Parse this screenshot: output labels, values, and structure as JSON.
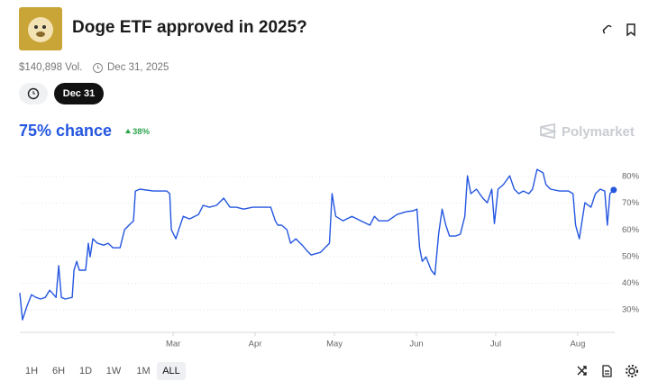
{
  "header": {
    "title": "Doge ETF approved in 2025?",
    "volume": "$140,898 Vol.",
    "end_date": "Dec 31, 2025",
    "date_pill": "Dec 31",
    "chance": "75% chance",
    "change": "38%",
    "brand": "Polymarket"
  },
  "chart_data": {
    "type": "line",
    "color": "#2456e0",
    "x": [
      0,
      1.0,
      2.7,
      4.4,
      6.1,
      7.8,
      9.6,
      11.3,
      13.7,
      14.7,
      15.7,
      17.1,
      19.8,
      20.5,
      21.5,
      22.5,
      24.9,
      25.9,
      26.6,
      27.6,
      29.4,
      31.7,
      33.4,
      35.2,
      37.9,
      39.6,
      41.3,
      43.0,
      43.7,
      45.4,
      50.5,
      55.6,
      56.7,
      57.3,
      59.0,
      60.1,
      61.8,
      64.2,
      67.6,
      69.3,
      71.7,
      74.4,
      77.1,
      79.5,
      81.9,
      84.6,
      88.1,
      94.9,
      96.6,
      97.6,
      99.0,
      101.0,
      102.4,
      104.4,
      106.8,
      108.5,
      110.2,
      113.7,
      115.4,
      117.1,
      118.1,
      119.5,
      122.2,
      125.6,
      129.0,
      132.4,
      134.1,
      135.8,
      139.2,
      142.7,
      146.1,
      148.8,
      150.2,
      151.2,
      152.2,
      153.6,
      155.6,
      157.0,
      158.4,
      159.7,
      161.1,
      162.5,
      164.8,
      166.6,
      168.3,
      169.3,
      170.6,
      172.7,
      175.1,
      176.8,
      178.5,
      179.5,
      180.9,
      182.9,
      185.3,
      187.0,
      188.7,
      190.4,
      192.5,
      193.9,
      195.6,
      197.9,
      199.0,
      200.7,
      204.1,
      207.5,
      209.2,
      210.2,
      211.6,
      213.7,
      216.0,
      217.7,
      219.5,
      221.2,
      222.2,
      223.2,
      224.6
    ],
    "values": [
      36.4,
      26.3,
      31.4,
      35.7,
      34.7,
      34.1,
      34.7,
      37.4,
      34.7,
      46.6,
      34.7,
      34.1,
      34.7,
      44.9,
      48.2,
      44.9,
      44.9,
      55.0,
      49.9,
      56.7,
      55.0,
      54.3,
      55.0,
      53.3,
      53.3,
      60.1,
      61.8,
      63.4,
      74.6,
      75.3,
      74.6,
      74.6,
      73.6,
      60.1,
      56.7,
      60.1,
      65.1,
      64.1,
      65.8,
      69.2,
      68.5,
      69.2,
      71.9,
      68.5,
      68.5,
      67.8,
      68.5,
      68.5,
      63.4,
      61.8,
      61.8,
      60.1,
      55.0,
      56.7,
      54.3,
      52.3,
      50.6,
      51.6,
      53.3,
      55.0,
      73.6,
      65.1,
      63.4,
      65.1,
      63.4,
      61.8,
      65.1,
      63.4,
      63.4,
      65.8,
      66.8,
      67.2,
      67.8,
      53.3,
      48.2,
      49.9,
      44.9,
      43.2,
      58.4,
      67.8,
      61.8,
      57.7,
      57.7,
      58.4,
      65.1,
      80.3,
      73.6,
      75.3,
      71.9,
      70.2,
      75.3,
      62.4,
      75.3,
      77.0,
      80.3,
      75.3,
      73.6,
      74.6,
      73.6,
      75.3,
      82.7,
      81.4,
      77.0,
      75.3,
      74.6,
      74.6,
      73.6,
      61.8,
      56.7,
      70.2,
      68.5,
      73.6,
      75.3,
      74.6,
      61.8,
      73.6,
      75
    ],
    "xlim": [
      0,
      225
    ],
    "xticks": [
      {
        "value": 58,
        "label": "Mar"
      },
      {
        "value": 89,
        "label": "Apr"
      },
      {
        "value": 119,
        "label": "May"
      },
      {
        "value": 150,
        "label": "Jun"
      },
      {
        "value": 180,
        "label": "Jul"
      },
      {
        "value": 211,
        "label": "Aug"
      }
    ],
    "ylim": [
      21.6,
      88.8
    ],
    "yticks": [
      {
        "value": 30,
        "label": "30%"
      },
      {
        "value": 40,
        "label": "40%"
      },
      {
        "value": 50,
        "label": "50%"
      },
      {
        "value": 60,
        "label": "60%"
      },
      {
        "value": 70,
        "label": "70%"
      },
      {
        "value": 80,
        "label": "80%"
      }
    ],
    "grid": true
  },
  "controls": {
    "ranges": [
      "1H",
      "6H",
      "1D",
      "1W",
      "1M",
      "ALL"
    ]
  }
}
